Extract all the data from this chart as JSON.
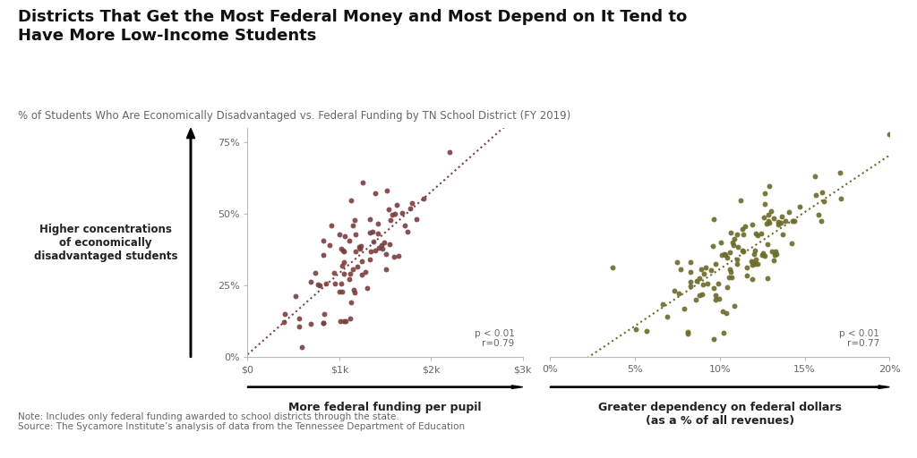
{
  "title": "Districts That Get the Most Federal Money and Most Depend on It Tend to\nHave More Low-Income Students",
  "subtitle": "% of Students Who Are Economically Disadvantaged vs. Federal Funding by TN School District (FY 2019)",
  "note": "Note: Includes only federal funding awarded to school districts through the state.\nSource: The Sycamore Institute’s analysis of data from the Tennessee Department of Education",
  "left_ylabel": "Higher concentrations\nof economically\ndisadvantaged students",
  "left_xlabel": "More federal funding per pupil",
  "right_xlabel": "Greater dependency on federal dollars\n(as a % of all revenues)",
  "left_stats": "p < 0.01\nr=0.79",
  "right_stats": "p < 0.01\nr=0.77",
  "left_color": "#7B3F3F",
  "right_color": "#6B6B2A",
  "bg_color": "#FFFFFF"
}
